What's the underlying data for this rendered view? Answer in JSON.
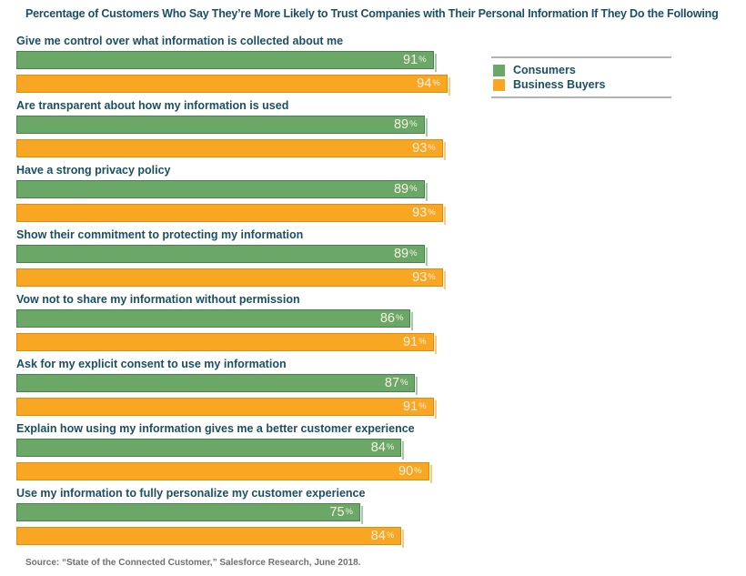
{
  "page": {
    "background": "#ffffff"
  },
  "chart_data": {
    "type": "bar",
    "orientation": "horizontal",
    "title": "Percentage of Customers Who Say They’re More Likely to Trust Companies with Their Personal Information If They Do the Following",
    "categories": [
      "Give me control over what information is collected about me",
      "Are transparent about how my information is used",
      "Have a strong privacy policy",
      "Show their commitment to protecting my information",
      "Vow not to share my information without permission",
      "Ask for my explicit consent to use my information",
      "Explain how using my information gives me a better customer experience",
      "Use my information to fully personalize my customer experience"
    ],
    "series": [
      {
        "key": "consumers",
        "name": "Consumers",
        "color": "#6BA767",
        "border_color": "#47814F",
        "values": [
          91,
          89,
          89,
          89,
          86,
          87,
          84,
          75
        ]
      },
      {
        "key": "business-buyers",
        "name": "Business Buyers",
        "color": "#F9A723",
        "border_color": "#D88E12",
        "values": [
          94,
          93,
          93,
          93,
          91,
          91,
          90,
          84
        ]
      }
    ],
    "value_suffix": "%",
    "xlim": [
      0,
      100
    ],
    "grid": false,
    "legend_position": "top-right",
    "source": "Source: “State of the Connected Customer,” Salesforce Research, June 2018.",
    "colors": {
      "title_text": "#1B4F63",
      "category_text": "#1B4F63",
      "value_text": "#FAF3E3",
      "source_text": "#707070",
      "legend_rule": "#B3B3B3"
    }
  }
}
